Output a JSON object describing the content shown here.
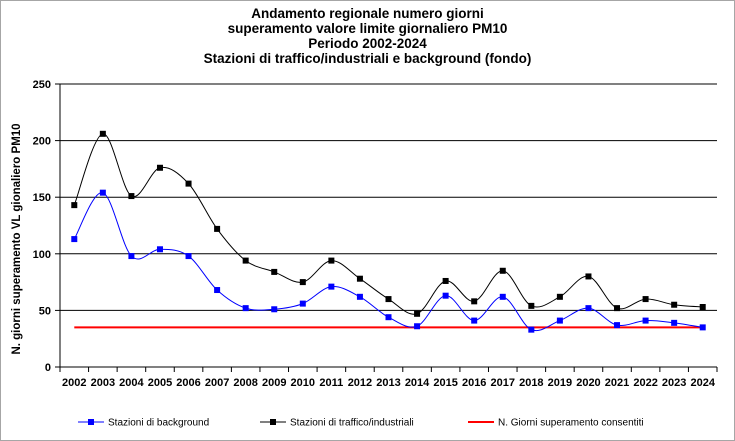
{
  "chart_data": {
    "type": "line",
    "title_lines": [
      "Andamento regionale numero giorni",
      "superamento valore limite giornaliero PM10",
      "Periodo 2002-2024",
      "Stazioni di traffico/industriali e background (fondo)"
    ],
    "ylabel": "N. giorni superamento VL gionaliero PM10",
    "xlabel": "",
    "ylim": [
      0,
      250
    ],
    "yticks": [
      0,
      50,
      100,
      150,
      200,
      250
    ],
    "grid": true,
    "legend_position": "bottom",
    "categories": [
      "2002",
      "2003",
      "2004",
      "2005",
      "2006",
      "2007",
      "2008",
      "2009",
      "2010",
      "2011",
      "2012",
      "2013",
      "2014",
      "2015",
      "2016",
      "2017",
      "2018",
      "2019",
      "2020",
      "2021",
      "2022",
      "2023",
      "2024"
    ],
    "series": [
      {
        "name": "Stazioni di background",
        "color": "#0000ff",
        "values": [
          113,
          154,
          98,
          104,
          98,
          68,
          52,
          51,
          56,
          71,
          62,
          44,
          36,
          63,
          41,
          62,
          33,
          41,
          52,
          37,
          41,
          39,
          35
        ]
      },
      {
        "name": "Stazioni di traffico/industriali",
        "color": "#000000",
        "values": [
          143,
          206,
          151,
          176,
          162,
          122,
          94,
          84,
          75,
          94,
          78,
          60,
          47,
          76,
          58,
          85,
          54,
          62,
          80,
          52,
          60,
          55,
          53
        ]
      }
    ],
    "reference_line": {
      "name": "N. Giorni superamento consentiti",
      "color": "#ff0000",
      "value": 35
    }
  }
}
